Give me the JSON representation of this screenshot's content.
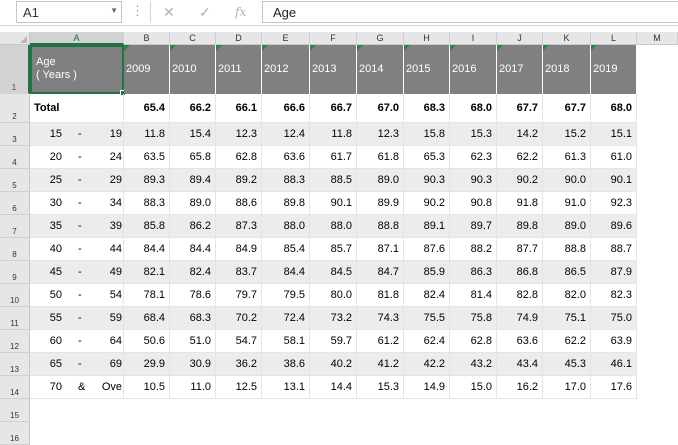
{
  "formula_bar": {
    "name_box": "A1",
    "cancel_icon": "✕",
    "enter_icon": "✓",
    "fx_label": "fx",
    "content": "Age"
  },
  "columns": [
    "A",
    "B",
    "C",
    "D",
    "E",
    "F",
    "G",
    "H",
    "I",
    "J",
    "K",
    "L",
    "M"
  ],
  "row_numbers": [
    "1",
    "2",
    "3",
    "4",
    "5",
    "6",
    "7",
    "8",
    "9",
    "10",
    "11",
    "12",
    "13",
    "14",
    "15",
    "16"
  ],
  "header": {
    "age_line1": "Age",
    "age_line2": "( Years )",
    "years": [
      "2009",
      "2010",
      "2011",
      "2012",
      "2013",
      "2014",
      "2015",
      "2016",
      "2017",
      "2018",
      "2019"
    ]
  },
  "total": {
    "label": "Total",
    "values": [
      "65.4",
      "66.2",
      "66.1",
      "66.6",
      "66.7",
      "67.0",
      "68.3",
      "68.0",
      "67.7",
      "67.7",
      "68.0"
    ]
  },
  "rows": [
    {
      "from": "15",
      "sep": "-",
      "to": "19",
      "values": [
        "11.8",
        "15.4",
        "12.3",
        "12.4",
        "11.8",
        "12.3",
        "15.8",
        "15.3",
        "14.2",
        "15.2",
        "15.1"
      ]
    },
    {
      "from": "20",
      "sep": "-",
      "to": "24",
      "values": [
        "63.5",
        "65.8",
        "62.8",
        "63.6",
        "61.7",
        "61.8",
        "65.3",
        "62.3",
        "62.2",
        "61.3",
        "61.0"
      ]
    },
    {
      "from": "25",
      "sep": "-",
      "to": "29",
      "values": [
        "89.3",
        "89.4",
        "89.2",
        "88.3",
        "88.5",
        "89.0",
        "90.3",
        "90.3",
        "90.2",
        "90.0",
        "90.1"
      ]
    },
    {
      "from": "30",
      "sep": "-",
      "to": "34",
      "values": [
        "88.3",
        "89.0",
        "88.6",
        "89.8",
        "90.1",
        "89.9",
        "90.2",
        "90.8",
        "91.8",
        "91.0",
        "92.3"
      ]
    },
    {
      "from": "35",
      "sep": "-",
      "to": "39",
      "values": [
        "85.8",
        "86.2",
        "87.3",
        "88.0",
        "88.0",
        "88.8",
        "89.1",
        "89.7",
        "89.8",
        "89.0",
        "89.6"
      ]
    },
    {
      "from": "40",
      "sep": "-",
      "to": "44",
      "values": [
        "84.4",
        "84.4",
        "84.9",
        "85.4",
        "85.7",
        "87.1",
        "87.6",
        "88.2",
        "87.7",
        "88.8",
        "88.7"
      ]
    },
    {
      "from": "45",
      "sep": "-",
      "to": "49",
      "values": [
        "82.1",
        "82.4",
        "83.7",
        "84.4",
        "84.5",
        "84.7",
        "85.9",
        "86.3",
        "86.8",
        "86.5",
        "87.9"
      ]
    },
    {
      "from": "50",
      "sep": "-",
      "to": "54",
      "values": [
        "78.1",
        "78.6",
        "79.7",
        "79.5",
        "80.0",
        "81.8",
        "82.4",
        "81.4",
        "82.8",
        "82.0",
        "82.3"
      ]
    },
    {
      "from": "55",
      "sep": "-",
      "to": "59",
      "values": [
        "68.4",
        "68.3",
        "70.2",
        "72.4",
        "73.2",
        "74.3",
        "75.5",
        "75.8",
        "74.9",
        "75.1",
        "75.0"
      ]
    },
    {
      "from": "60",
      "sep": "-",
      "to": "64",
      "values": [
        "50.6",
        "51.0",
        "54.7",
        "58.1",
        "59.7",
        "61.2",
        "62.4",
        "62.8",
        "63.6",
        "62.2",
        "63.9"
      ]
    },
    {
      "from": "65",
      "sep": "-",
      "to": "69",
      "values": [
        "29.9",
        "30.9",
        "36.2",
        "38.6",
        "40.2",
        "41.2",
        "42.2",
        "43.2",
        "43.4",
        "45.3",
        "46.1"
      ]
    },
    {
      "from": "70",
      "sep": "&",
      "to": "Ove",
      "values": [
        "10.5",
        "11.0",
        "12.5",
        "13.1",
        "14.4",
        "15.3",
        "14.9",
        "15.0",
        "16.2",
        "17.0",
        "17.6"
      ]
    }
  ],
  "colors": {
    "header_fill": "#808080",
    "selection": "#217346",
    "band": "#ececec"
  }
}
